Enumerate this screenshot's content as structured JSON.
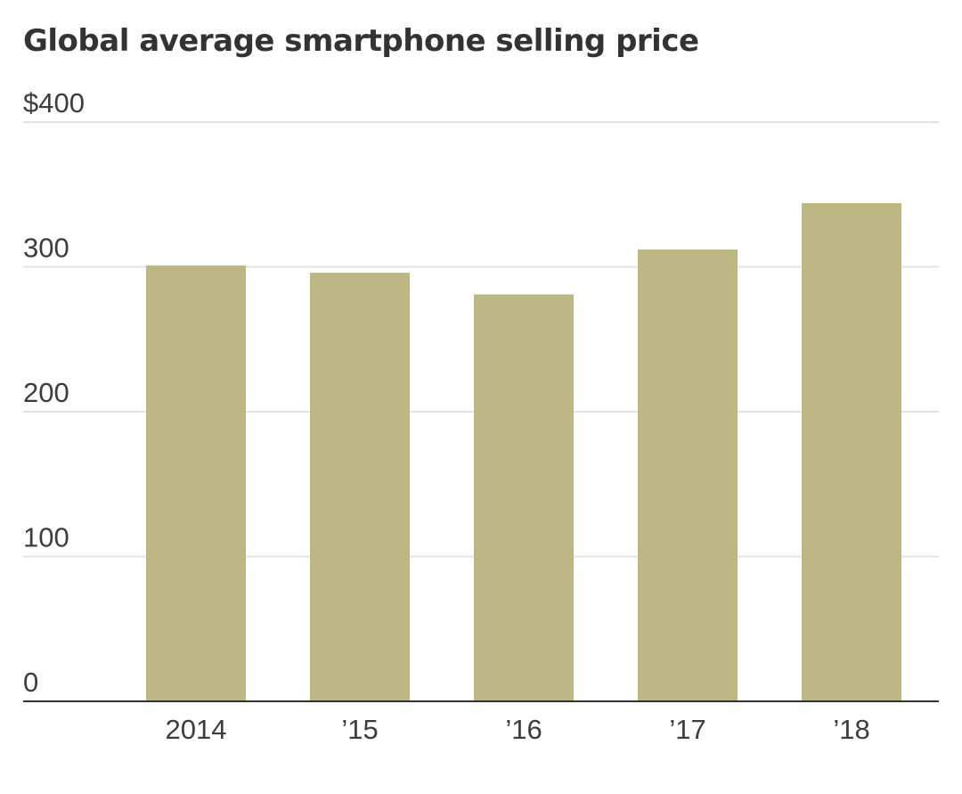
{
  "chart_data": {
    "type": "bar",
    "title": "Global average smartphone selling price",
    "categories": [
      "2014",
      "’15",
      "’16",
      "’17",
      "’18"
    ],
    "values": [
      301,
      296,
      281,
      312,
      344
    ],
    "ylim": [
      0,
      400
    ],
    "yticks": [
      0,
      100,
      200,
      300,
      400
    ],
    "ytick_labels": [
      "0",
      "100",
      "200",
      "300",
      "$400"
    ],
    "xlabel": "",
    "ylabel": "",
    "grid": true,
    "colors": {
      "bar": "#bdb883",
      "grid": "#e3e3e3",
      "axis": "#333333",
      "text": "#333333"
    }
  }
}
